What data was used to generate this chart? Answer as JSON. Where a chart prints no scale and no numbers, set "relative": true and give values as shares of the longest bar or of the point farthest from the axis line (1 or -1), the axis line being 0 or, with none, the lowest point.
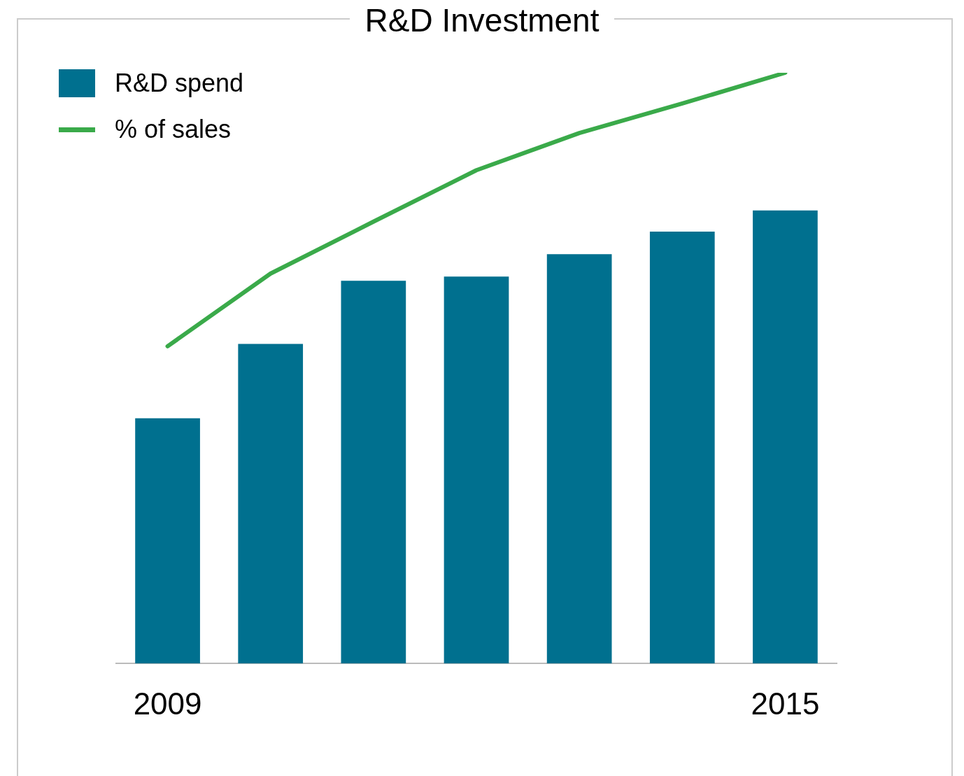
{
  "chart_data": {
    "type": "bar",
    "title": "R&D Investment",
    "relative": true,
    "categories": [
      "2009",
      null,
      null,
      null,
      null,
      null,
      "2015"
    ],
    "series": [
      {
        "name": "R&D spend",
        "color": "#00708f",
        "values": [
          0.415,
          0.541,
          0.648,
          0.655,
          0.693,
          0.731,
          0.767
        ]
      },
      {
        "name": "% of sales",
        "type": "line",
        "color": "#3aaa4a",
        "values": [
          0.537,
          0.66,
          0.748,
          0.835,
          0.898,
          0.948,
          1
        ]
      }
    ],
    "legend": "top left",
    "grid": false,
    "marker": "none"
  }
}
